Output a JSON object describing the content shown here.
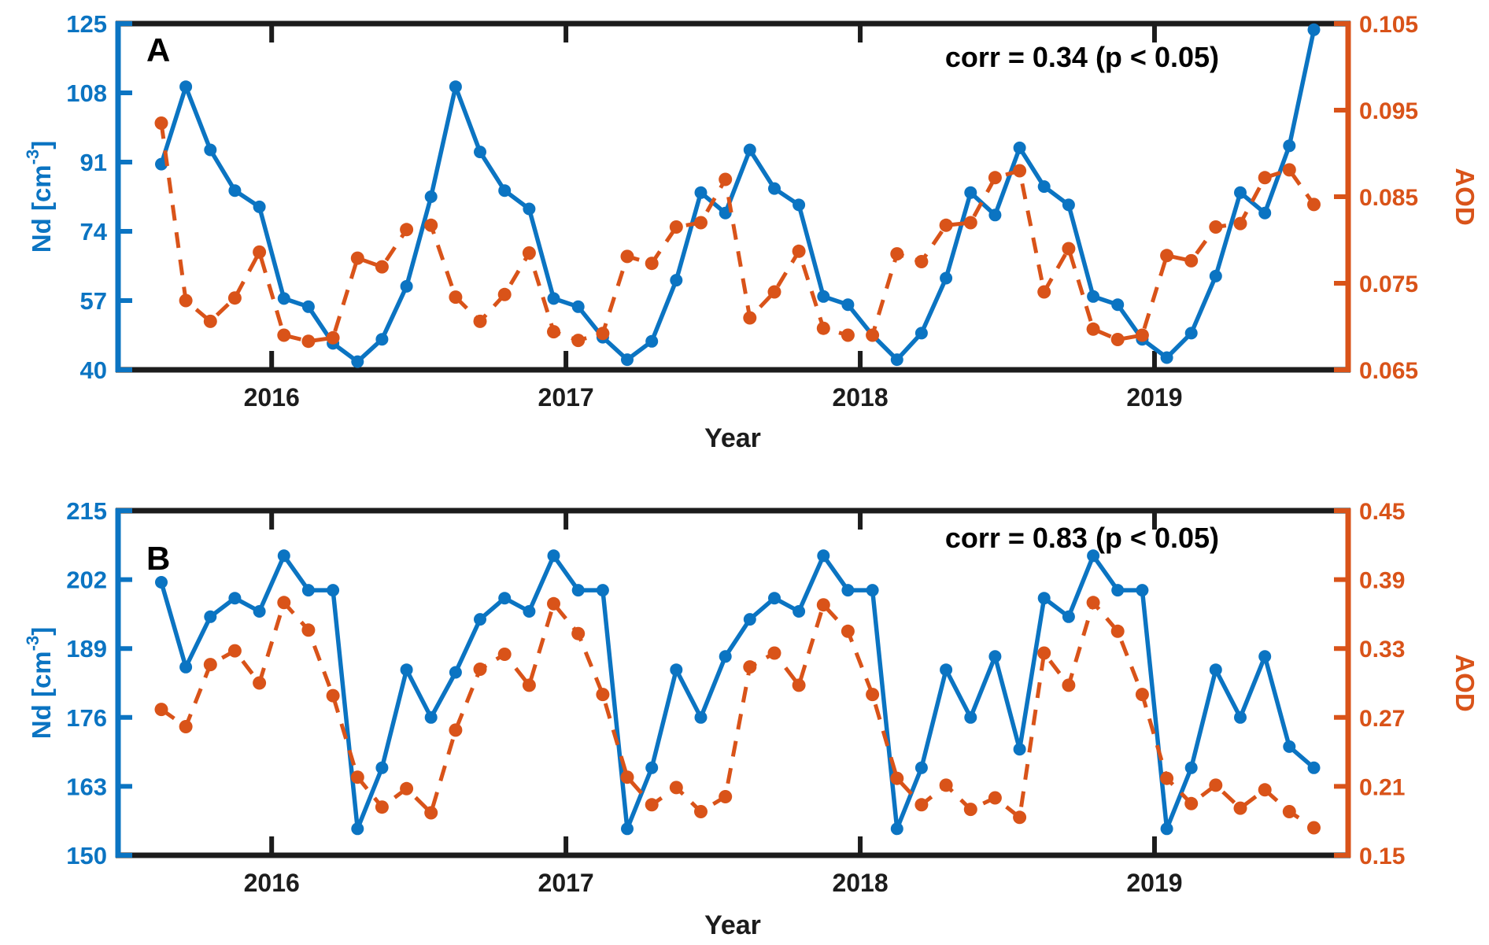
{
  "chart_data": {
    "type": "line",
    "x_unit": "year (monthly points, mid-month)",
    "x": [
      2015.625,
      2015.7083,
      2015.7917,
      2015.875,
      2015.9583,
      2016.0417,
      2016.125,
      2016.2083,
      2016.2917,
      2016.375,
      2016.4583,
      2016.5417,
      2016.625,
      2016.7083,
      2016.7917,
      2016.875,
      2016.9583,
      2017.0417,
      2017.125,
      2017.2083,
      2017.2917,
      2017.375,
      2017.4583,
      2017.5417,
      2017.625,
      2017.7083,
      2017.7917,
      2017.875,
      2017.9583,
      2018.0417,
      2018.125,
      2018.2083,
      2018.2917,
      2018.375,
      2018.4583,
      2018.5417,
      2018.625,
      2018.7083,
      2018.7917,
      2018.875,
      2018.9583,
      2019.0417,
      2019.125,
      2019.2083,
      2019.2917,
      2019.375,
      2019.4583,
      2019.5417
    ],
    "xlim": [
      2015.478,
      2019.658
    ],
    "xticks": [
      2016,
      2017,
      2018,
      2019
    ],
    "xtick_labels": [
      "2016",
      "2017",
      "2018",
      "2019"
    ],
    "colors": {
      "nd": "#0b74c2",
      "aod": "#d95319",
      "frame": "#1c1c1c"
    },
    "grid": false,
    "legend": "none",
    "panels": [
      {
        "panel_label": "A",
        "corr_annotation": "corr = 0.34 (p < 0.05)",
        "xlabel": "Year",
        "ylabel_left": {
          "pre": "Nd [cm",
          "sup": "-3",
          "post": "]"
        },
        "ylabel_right": "AOD",
        "ylim_left": [
          40,
          125
        ],
        "yticks_left": [
          40,
          57,
          74,
          91,
          108,
          125
        ],
        "ytick_labels_left": [
          "40",
          "57",
          "74",
          "91",
          "108",
          "125"
        ],
        "ylim_right": [
          0.065,
          0.105
        ],
        "yticks_right": [
          0.065,
          0.075,
          0.085,
          0.095,
          0.105
        ],
        "ytick_labels_right": [
          "0.065",
          "0.075",
          "0.085",
          "0.095",
          "0.105"
        ],
        "series": [
          {
            "name": "Nd",
            "axis": "left",
            "style": "solid",
            "values": [
              90.5,
              109.5,
              94,
              84,
              80,
              57.5,
              55.5,
              46.5,
              42,
              47.5,
              60.5,
              82.5,
              109.5,
              93.5,
              84,
              79.5,
              57.5,
              55.5,
              48,
              42.5,
              47,
              62,
              83.5,
              78.5,
              94,
              84.5,
              80.5,
              58,
              56,
              48.5,
              42.5,
              49,
              62.5,
              83.5,
              78,
              94.5,
              85,
              80.5,
              58,
              56,
              47.5,
              43,
              49,
              63,
              83.5,
              78.5,
              95,
              123.5
            ]
          },
          {
            "name": "AOD",
            "axis": "right",
            "style": "dashed",
            "values": [
              0.0935,
              0.073,
              0.0706,
              0.0733,
              0.0786,
              0.069,
              0.0683,
              0.0687,
              0.0779,
              0.0769,
              0.0812,
              0.0817,
              0.0734,
              0.0706,
              0.0737,
              0.0785,
              0.0694,
              0.0684,
              0.0692,
              0.0781,
              0.0773,
              0.0815,
              0.082,
              0.087,
              0.071,
              0.074,
              0.0787,
              0.0698,
              0.069,
              0.069,
              0.0784,
              0.0775,
              0.0817,
              0.082,
              0.0872,
              0.088,
              0.074,
              0.079,
              0.0697,
              0.0685,
              0.069,
              0.0782,
              0.0776,
              0.0815,
              0.0819,
              0.0872,
              0.0881,
              0.0841
            ]
          }
        ]
      },
      {
        "panel_label": "B",
        "corr_annotation": "corr = 0.83 (p < 0.05)",
        "xlabel": "Year",
        "ylabel_left": {
          "pre": "Nd [cm",
          "sup": "-3",
          "post": "]"
        },
        "ylabel_right": "AOD",
        "ylim_left": [
          150,
          215
        ],
        "yticks_left": [
          150,
          163,
          176,
          189,
          202,
          215
        ],
        "ytick_labels_left": [
          "150",
          "163",
          "176",
          "189",
          "202",
          "215"
        ],
        "ylim_right": [
          0.15,
          0.45
        ],
        "yticks_right": [
          0.15,
          0.21,
          0.27,
          0.33,
          0.39,
          0.45
        ],
        "ytick_labels_right": [
          "0.15",
          "0.21",
          "0.27",
          "0.33",
          "0.39",
          "0.45"
        ],
        "series": [
          {
            "name": "Nd",
            "axis": "left",
            "style": "solid",
            "values": [
              201.5,
              185.5,
              195,
              198.5,
              196,
              206.5,
              200,
              200,
              155,
              166.5,
              185,
              176,
              184.5,
              194.5,
              198.5,
              196,
              206.5,
              200,
              200,
              155,
              166.5,
              185,
              176,
              187.5,
              194.5,
              198.5,
              196,
              206.5,
              200,
              200,
              155,
              166.5,
              185,
              176,
              187.5,
              170,
              198.5,
              195,
              206.5,
              200,
              200,
              155,
              166.5,
              185,
              176,
              187.5,
              170.5,
              166.5
            ]
          },
          {
            "name": "AOD",
            "axis": "right",
            "style": "dashed",
            "values": [
              0.277,
              0.262,
              0.316,
              0.328,
              0.3,
              0.37,
              0.346,
              0.289,
              0.218,
              0.192,
              0.208,
              0.187,
              0.259,
              0.312,
              0.325,
              0.298,
              0.369,
              0.343,
              0.29,
              0.218,
              0.194,
              0.209,
              0.188,
              0.201,
              0.314,
              0.326,
              0.298,
              0.368,
              0.345,
              0.29,
              0.217,
              0.194,
              0.211,
              0.19,
              0.2,
              0.183,
              0.326,
              0.298,
              0.37,
              0.345,
              0.29,
              0.217,
              0.195,
              0.211,
              0.191,
              0.207,
              0.188,
              0.174
            ]
          }
        ]
      }
    ]
  }
}
